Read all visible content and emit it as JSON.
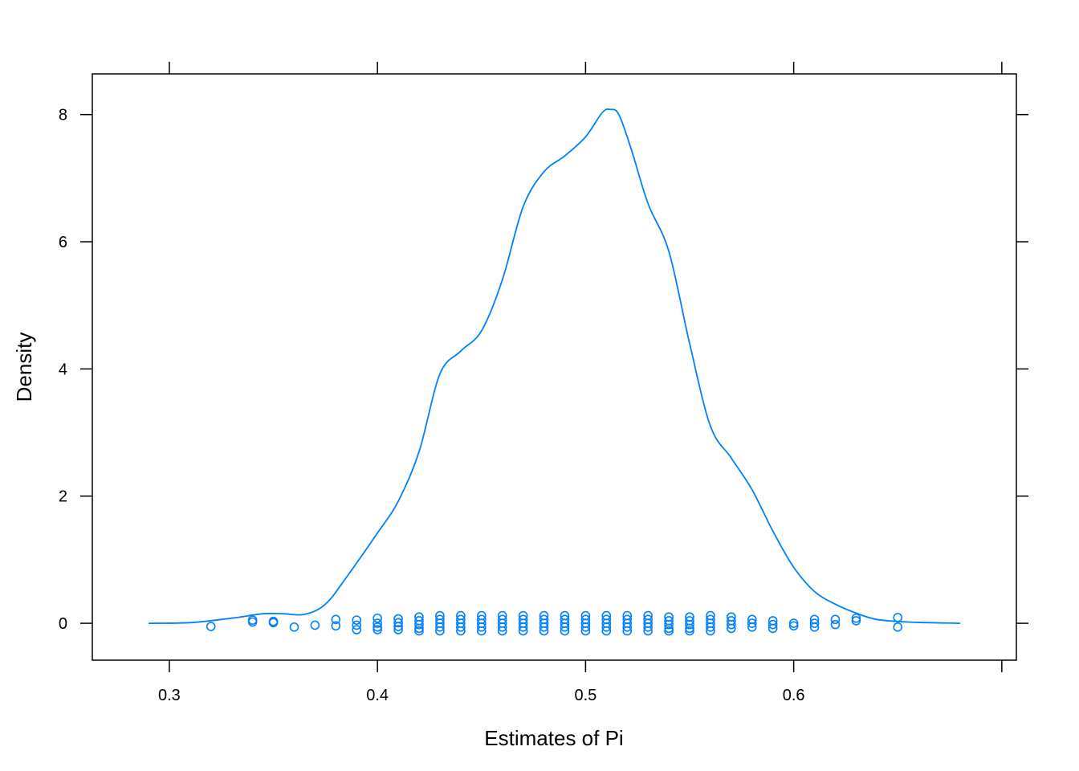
{
  "chart_data": {
    "type": "density",
    "xlabel": "Estimates of Pi",
    "ylabel": "Density",
    "xlim": [
      0.263,
      0.707
    ],
    "ylim": [
      -0.58,
      8.64
    ],
    "x_ticks": [
      {
        "value": 0.3,
        "label": "0.3"
      },
      {
        "value": 0.4,
        "label": "0.4"
      },
      {
        "value": 0.5,
        "label": "0.5"
      },
      {
        "value": 0.6,
        "label": "0.6"
      }
    ],
    "y_ticks": [
      {
        "value": 0,
        "label": "0"
      },
      {
        "value": 2,
        "label": "2"
      },
      {
        "value": 4,
        "label": "4"
      },
      {
        "value": 6,
        "label": "6"
      },
      {
        "value": 8,
        "label": "8"
      }
    ],
    "grid": false,
    "series": [
      {
        "color": "#0080ff",
        "density_curve": [
          [
            0.29,
            0.0
          ],
          [
            0.31,
            0.01
          ],
          [
            0.33,
            0.08
          ],
          [
            0.345,
            0.15
          ],
          [
            0.355,
            0.15
          ],
          [
            0.365,
            0.14
          ],
          [
            0.375,
            0.3
          ],
          [
            0.385,
            0.72
          ],
          [
            0.4,
            1.42
          ],
          [
            0.41,
            1.92
          ],
          [
            0.42,
            2.7
          ],
          [
            0.43,
            3.92
          ],
          [
            0.44,
            4.28
          ],
          [
            0.45,
            4.6
          ],
          [
            0.46,
            5.4
          ],
          [
            0.47,
            6.55
          ],
          [
            0.48,
            7.1
          ],
          [
            0.49,
            7.35
          ],
          [
            0.5,
            7.65
          ],
          [
            0.508,
            8.03
          ],
          [
            0.512,
            8.08
          ],
          [
            0.516,
            8.0
          ],
          [
            0.522,
            7.45
          ],
          [
            0.53,
            6.6
          ],
          [
            0.54,
            5.85
          ],
          [
            0.55,
            4.4
          ],
          [
            0.56,
            3.1
          ],
          [
            0.57,
            2.6
          ],
          [
            0.58,
            2.1
          ],
          [
            0.59,
            1.45
          ],
          [
            0.6,
            0.88
          ],
          [
            0.61,
            0.5
          ],
          [
            0.62,
            0.3
          ],
          [
            0.63,
            0.16
          ],
          [
            0.64,
            0.06
          ],
          [
            0.655,
            0.02
          ],
          [
            0.68,
            0.0
          ]
        ],
        "rug_points": [
          {
            "x": 0.32,
            "y": -0.05
          },
          {
            "x": 0.34,
            "y": 0.05
          },
          {
            "x": 0.34,
            "y": 0.02
          },
          {
            "x": 0.35,
            "y": 0.01
          },
          {
            "x": 0.35,
            "y": 0.03
          },
          {
            "x": 0.36,
            "y": -0.06
          },
          {
            "x": 0.37,
            "y": -0.03
          },
          {
            "x": 0.38,
            "y": 0.06
          },
          {
            "x": 0.38,
            "y": -0.04
          },
          {
            "x": 0.39,
            "y": 0.05
          },
          {
            "x": 0.39,
            "y": -0.03
          },
          {
            "x": 0.39,
            "y": -0.1
          },
          {
            "x": 0.4,
            "y": 0.08
          },
          {
            "x": 0.4,
            "y": 0.0
          },
          {
            "x": 0.4,
            "y": -0.06
          },
          {
            "x": 0.4,
            "y": -0.1
          },
          {
            "x": 0.41,
            "y": 0.07
          },
          {
            "x": 0.41,
            "y": 0.01
          },
          {
            "x": 0.41,
            "y": -0.05
          },
          {
            "x": 0.41,
            "y": -0.1
          },
          {
            "x": 0.42,
            "y": 0.1
          },
          {
            "x": 0.42,
            "y": 0.04
          },
          {
            "x": 0.42,
            "y": -0.02
          },
          {
            "x": 0.42,
            "y": -0.08
          },
          {
            "x": 0.42,
            "y": -0.12
          },
          {
            "x": 0.43,
            "y": 0.12
          },
          {
            "x": 0.43,
            "y": 0.06
          },
          {
            "x": 0.43,
            "y": 0.0
          },
          {
            "x": 0.43,
            "y": -0.06
          },
          {
            "x": 0.43,
            "y": -0.12
          },
          {
            "x": 0.44,
            "y": 0.12
          },
          {
            "x": 0.44,
            "y": 0.06
          },
          {
            "x": 0.44,
            "y": 0.0
          },
          {
            "x": 0.44,
            "y": -0.06
          },
          {
            "x": 0.44,
            "y": -0.12
          },
          {
            "x": 0.45,
            "y": 0.12
          },
          {
            "x": 0.45,
            "y": 0.06
          },
          {
            "x": 0.45,
            "y": 0.0
          },
          {
            "x": 0.45,
            "y": -0.06
          },
          {
            "x": 0.45,
            "y": -0.12
          },
          {
            "x": 0.46,
            "y": 0.12
          },
          {
            "x": 0.46,
            "y": 0.06
          },
          {
            "x": 0.46,
            "y": 0.0
          },
          {
            "x": 0.46,
            "y": -0.06
          },
          {
            "x": 0.46,
            "y": -0.12
          },
          {
            "x": 0.47,
            "y": 0.12
          },
          {
            "x": 0.47,
            "y": 0.06
          },
          {
            "x": 0.47,
            "y": 0.0
          },
          {
            "x": 0.47,
            "y": -0.06
          },
          {
            "x": 0.47,
            "y": -0.12
          },
          {
            "x": 0.48,
            "y": 0.12
          },
          {
            "x": 0.48,
            "y": 0.06
          },
          {
            "x": 0.48,
            "y": 0.0
          },
          {
            "x": 0.48,
            "y": -0.06
          },
          {
            "x": 0.48,
            "y": -0.12
          },
          {
            "x": 0.49,
            "y": 0.12
          },
          {
            "x": 0.49,
            "y": 0.06
          },
          {
            "x": 0.49,
            "y": 0.0
          },
          {
            "x": 0.49,
            "y": -0.06
          },
          {
            "x": 0.49,
            "y": -0.12
          },
          {
            "x": 0.5,
            "y": 0.12
          },
          {
            "x": 0.5,
            "y": 0.06
          },
          {
            "x": 0.5,
            "y": 0.0
          },
          {
            "x": 0.5,
            "y": -0.06
          },
          {
            "x": 0.5,
            "y": -0.12
          },
          {
            "x": 0.51,
            "y": 0.12
          },
          {
            "x": 0.51,
            "y": 0.06
          },
          {
            "x": 0.51,
            "y": 0.0
          },
          {
            "x": 0.51,
            "y": -0.06
          },
          {
            "x": 0.51,
            "y": -0.12
          },
          {
            "x": 0.52,
            "y": 0.12
          },
          {
            "x": 0.52,
            "y": 0.06
          },
          {
            "x": 0.52,
            "y": 0.0
          },
          {
            "x": 0.52,
            "y": -0.06
          },
          {
            "x": 0.52,
            "y": -0.12
          },
          {
            "x": 0.53,
            "y": 0.12
          },
          {
            "x": 0.53,
            "y": 0.06
          },
          {
            "x": 0.53,
            "y": 0.0
          },
          {
            "x": 0.53,
            "y": -0.06
          },
          {
            "x": 0.53,
            "y": -0.12
          },
          {
            "x": 0.54,
            "y": 0.1
          },
          {
            "x": 0.54,
            "y": 0.04
          },
          {
            "x": 0.54,
            "y": -0.02
          },
          {
            "x": 0.54,
            "y": -0.08
          },
          {
            "x": 0.54,
            "y": -0.12
          },
          {
            "x": 0.55,
            "y": 0.1
          },
          {
            "x": 0.55,
            "y": 0.04
          },
          {
            "x": 0.55,
            "y": -0.02
          },
          {
            "x": 0.55,
            "y": -0.08
          },
          {
            "x": 0.55,
            "y": -0.12
          },
          {
            "x": 0.56,
            "y": 0.12
          },
          {
            "x": 0.56,
            "y": 0.06
          },
          {
            "x": 0.56,
            "y": 0.0
          },
          {
            "x": 0.56,
            "y": -0.06
          },
          {
            "x": 0.56,
            "y": -0.12
          },
          {
            "x": 0.57,
            "y": 0.1
          },
          {
            "x": 0.57,
            "y": 0.04
          },
          {
            "x": 0.57,
            "y": -0.02
          },
          {
            "x": 0.57,
            "y": -0.08
          },
          {
            "x": 0.58,
            "y": 0.06
          },
          {
            "x": 0.58,
            "y": 0.0
          },
          {
            "x": 0.58,
            "y": -0.06
          },
          {
            "x": 0.59,
            "y": 0.04
          },
          {
            "x": 0.59,
            "y": -0.02
          },
          {
            "x": 0.59,
            "y": -0.08
          },
          {
            "x": 0.6,
            "y": 0.0
          },
          {
            "x": 0.6,
            "y": -0.04
          },
          {
            "x": 0.61,
            "y": 0.06
          },
          {
            "x": 0.61,
            "y": 0.0
          },
          {
            "x": 0.61,
            "y": -0.06
          },
          {
            "x": 0.62,
            "y": 0.06
          },
          {
            "x": 0.62,
            "y": -0.02
          },
          {
            "x": 0.63,
            "y": 0.08
          },
          {
            "x": 0.63,
            "y": 0.04
          },
          {
            "x": 0.65,
            "y": 0.09
          },
          {
            "x": 0.65,
            "y": -0.06
          }
        ]
      }
    ]
  }
}
